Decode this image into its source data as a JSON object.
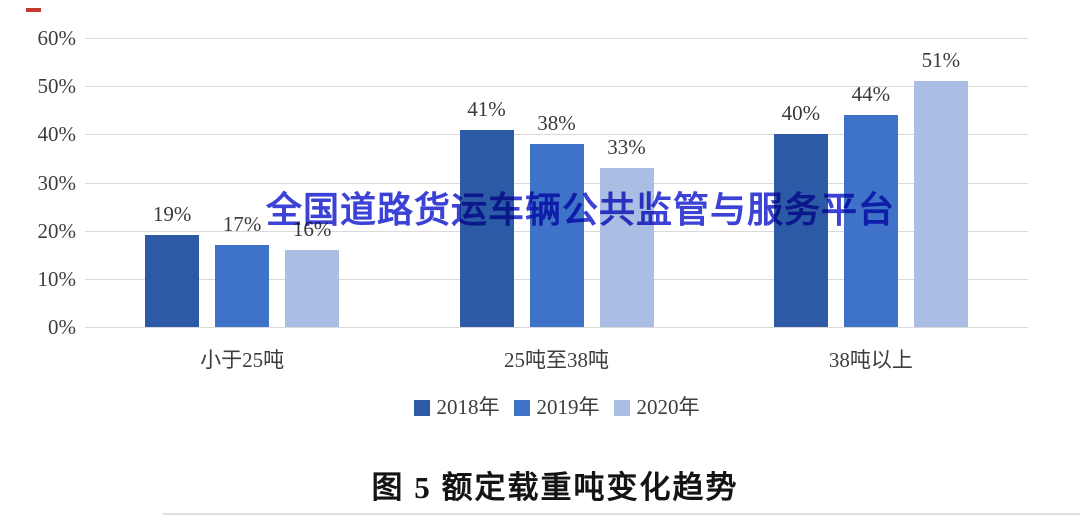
{
  "page": {
    "background": "#ffffff"
  },
  "watermark": {
    "text": "全国道路货运车辆公共监管与服务平台",
    "color": "#3b42d5"
  },
  "caption": "图 5  额定载重吨变化趋势",
  "annotation_mark": {
    "color": "#c4392e"
  },
  "chart_data": {
    "type": "bar",
    "title": "",
    "xlabel": "",
    "ylabel": "",
    "categories": [
      "小于25吨",
      "25吨至38吨",
      "38吨以上"
    ],
    "series": [
      {
        "name": "2018年",
        "color": "#2d5aa6",
        "values": [
          19,
          41,
          40
        ]
      },
      {
        "name": "2019年",
        "color": "#3f73c9",
        "values": [
          17,
          38,
          44
        ]
      },
      {
        "name": "2020年",
        "color": "#aabde2",
        "values": [
          16,
          33,
          51
        ]
      }
    ],
    "value_suffix": "%",
    "data_labels": true,
    "y_ticks": [
      "0%",
      "10%",
      "20%",
      "30%",
      "40%",
      "50%",
      "60%"
    ],
    "y_tick_values": [
      0,
      10,
      20,
      30,
      40,
      50,
      60
    ],
    "ylim": [
      0,
      60
    ],
    "grid": true,
    "gridline_color": "#d9d9d9",
    "legend_position": "bottom",
    "text_color": "#3d3d3d"
  }
}
